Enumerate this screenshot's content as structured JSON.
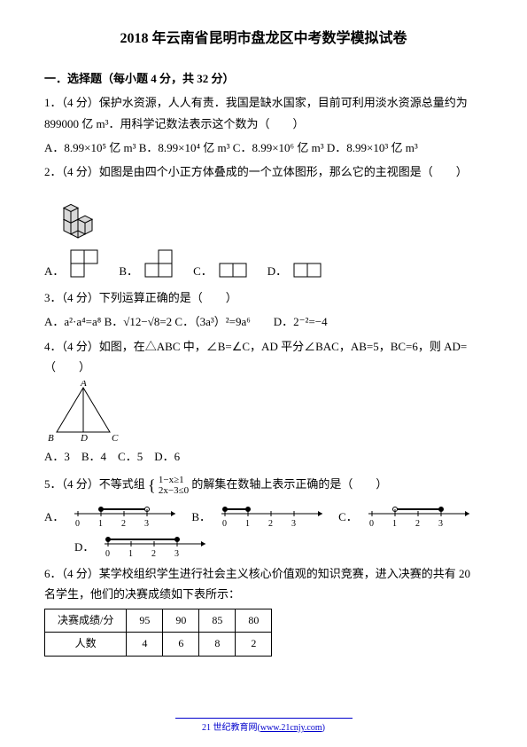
{
  "title": "2018 年云南省昆明市盘龙区中考数学模拟试卷",
  "section1": {
    "header": "一．选择题（每小题 4 分，共 32 分）",
    "q1": {
      "stem": "1．（4 分）保护水资源，人人有责．我国是缺水国家，目前可利用淡水资源总量约为 899000 亿 m³．用科学记数法表示这个数为（　　）",
      "opts": "A．8.99×10⁵ 亿 m³  B．8.99×10⁴ 亿 m³  C．8.99×10⁶ 亿 m³  D．8.99×10³ 亿 m³"
    },
    "q2": {
      "stem": "2．（4 分）如图是由四个小正方体叠成的一个立体图形，那么它的主视图是（　　）",
      "cubes_color": "#d8d8d8",
      "cubes_stroke": "#000",
      "optA": "A．",
      "optB": "B．",
      "optC": "C．",
      "optD": "D．",
      "views": {
        "A": [
          [
            1,
            1,
            0
          ],
          [
            1,
            0,
            0
          ]
        ],
        "B": [
          [
            0,
            1,
            0
          ],
          [
            1,
            1,
            0
          ]
        ],
        "C": [
          [
            0,
            0,
            0
          ],
          [
            1,
            1,
            0
          ]
        ],
        "D": [
          [
            0,
            0
          ],
          [
            1,
            1
          ]
        ]
      }
    },
    "q3": {
      "stem": "3．（4 分）下列运算正确的是（　　）",
      "opts": "A．a²·a⁴=a⁸  B．√12−√8=2  C．（3a³）²=9a⁶　　D．2⁻²=−4"
    },
    "q4": {
      "stem": "4．（4 分）如图，在△ABC 中，∠B=∠C，AD 平分∠BAC，AB=5，BC=6，则 AD=（　　）",
      "triangle": {
        "B": [
          0,
          50
        ],
        "D": [
          30,
          50
        ],
        "C": [
          60,
          50
        ],
        "A": [
          30,
          0
        ],
        "stroke": "#000"
      },
      "opts": "A．3　B．4　C．5　D．6"
    },
    "q5": {
      "stem1": "5．（4 分）不等式组",
      "ineq1": "1−x≥1",
      "ineq2": "2x−3≤0",
      "stem2": "的解集在数轴上表示正确的是（　　）",
      "optA": "A．",
      "optB": "B．",
      "optC": "C．",
      "optD": "D．",
      "numberlines": {
        "ticks": [
          0,
          1,
          2,
          3
        ],
        "A": {
          "from": 1,
          "to": 3,
          "leftOpen": false,
          "rightOpen": true
        },
        "B": {
          "from": 0,
          "to": 1,
          "leftOpen": false,
          "rightOpen": false
        },
        "C": {
          "from": 1,
          "to": 3,
          "leftOpen": true,
          "rightOpen": false
        },
        "D": {
          "from": 0,
          "to": 3,
          "leftOpen": false,
          "rightOpen": false
        }
      }
    },
    "q6": {
      "stem": "6．（4 分）某学校组织学生进行社会主义核心价值观的知识竞赛，进入决赛的共有 20 名学生，他们的决赛成绩如下表所示：",
      "table": {
        "row_headers": [
          "决赛成绩/分",
          "人数"
        ],
        "cols": [
          "95",
          "90",
          "85",
          "80"
        ],
        "counts": [
          "4",
          "6",
          "8",
          "2"
        ]
      }
    }
  },
  "footer": {
    "text": "21 世纪教育网(",
    "url": "www.21cnjy.com",
    "suffix": ")"
  }
}
